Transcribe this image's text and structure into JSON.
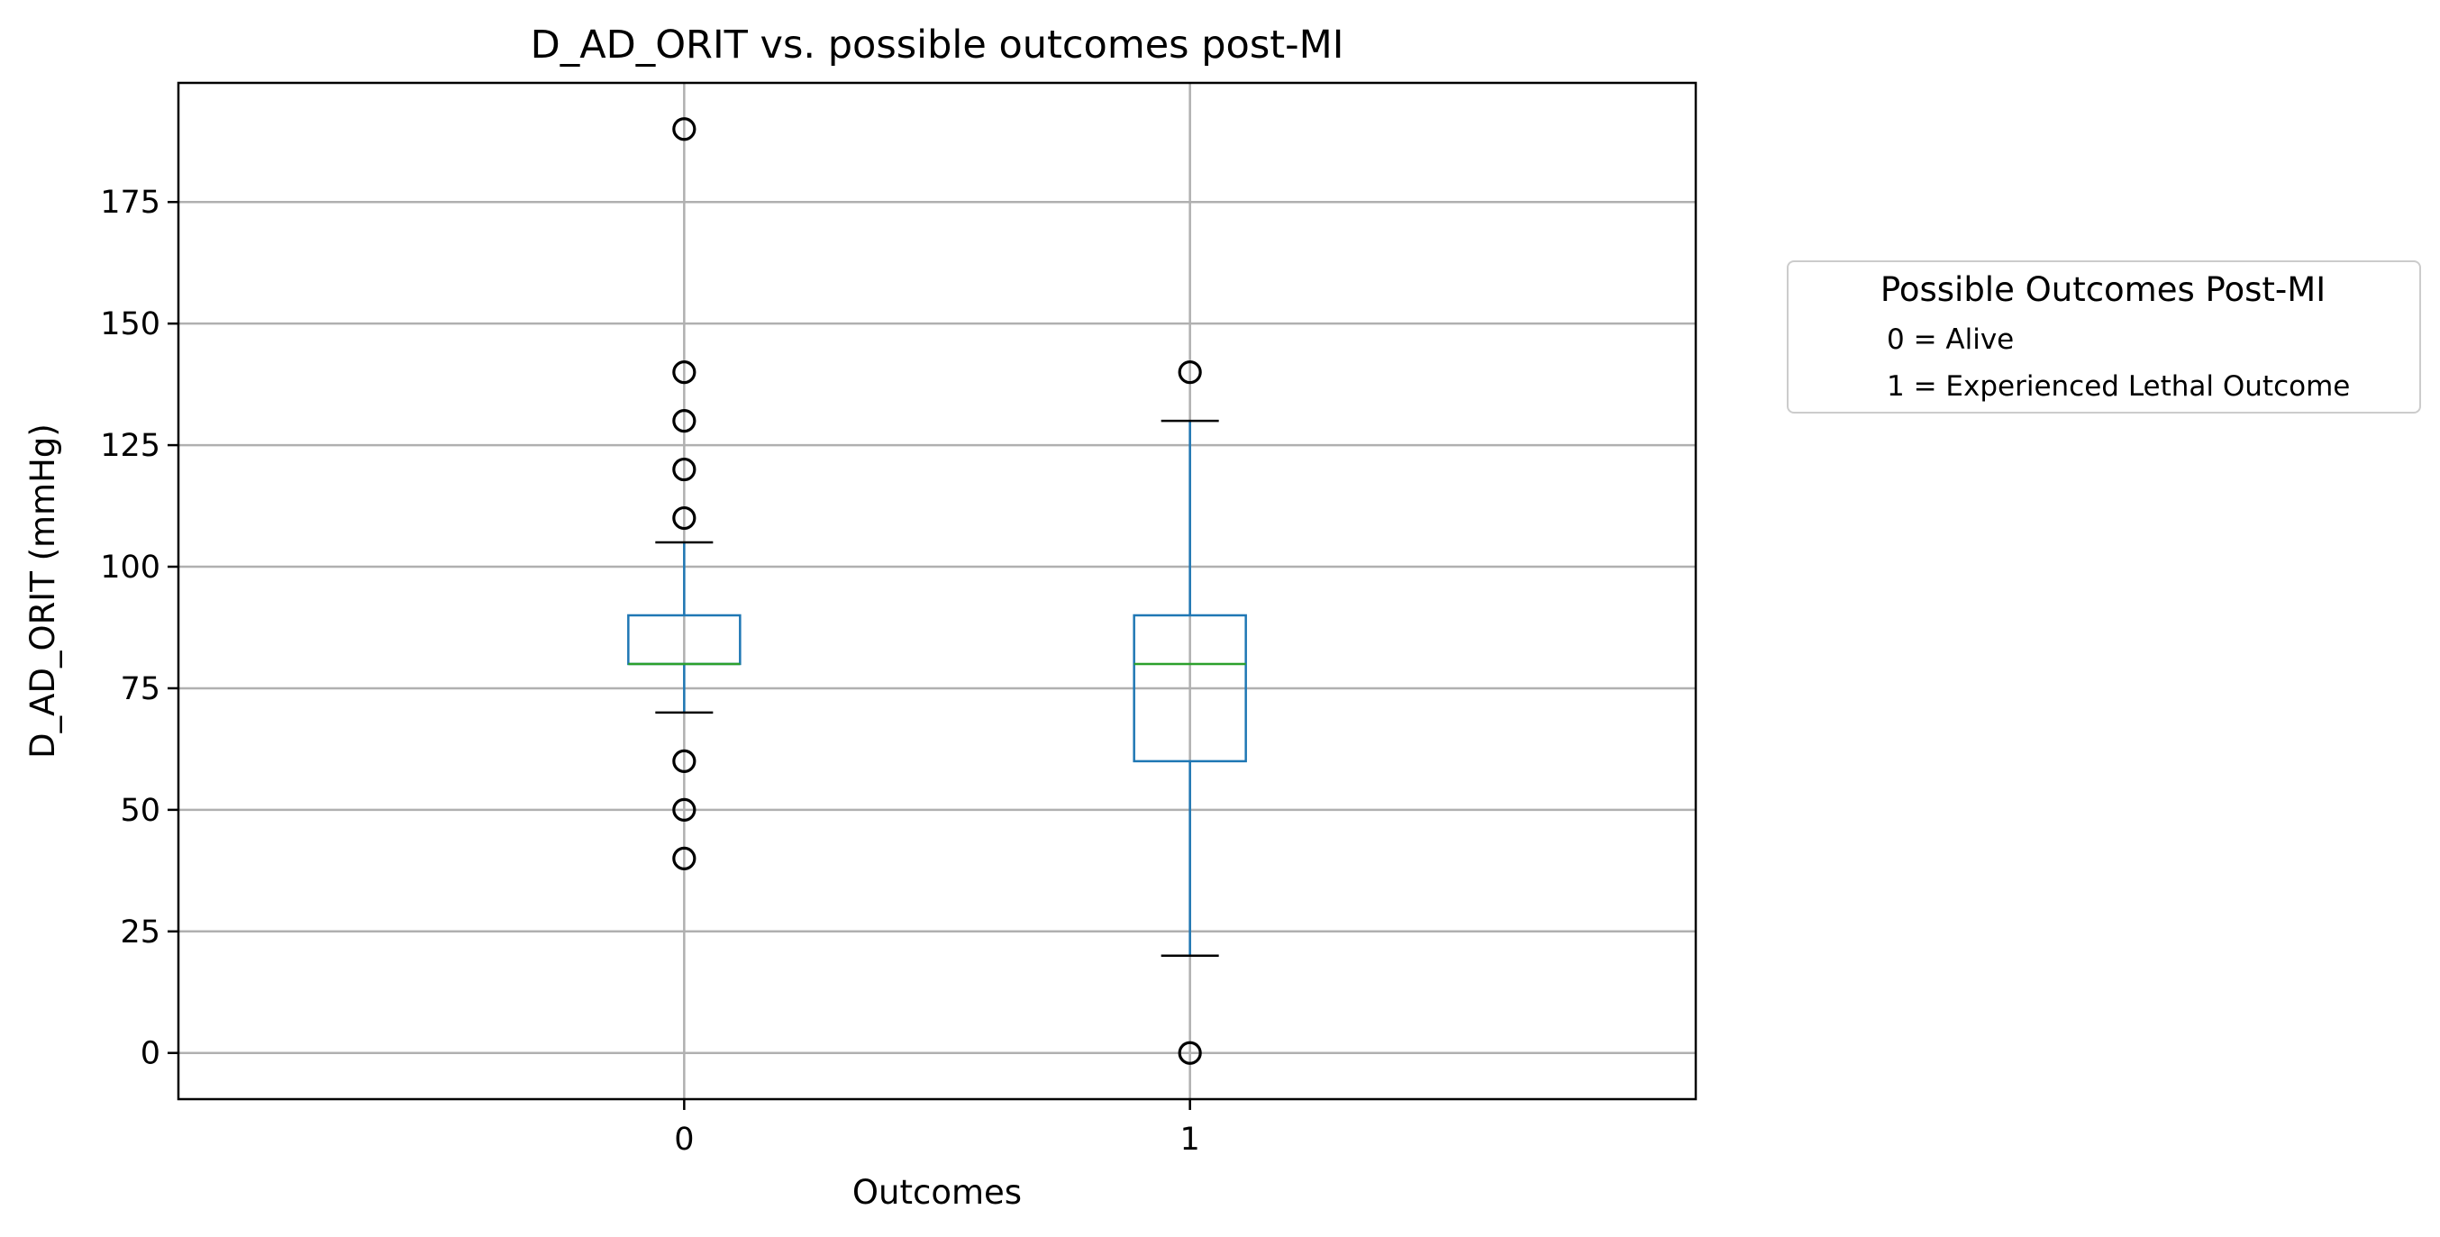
{
  "chart_data": {
    "type": "box",
    "title": "D_AD_ORIT vs. possible outcomes post-MI",
    "xlabel": "Outcomes",
    "ylabel": "D_AD_ORIT (mmHg)",
    "categories": [
      "0",
      "1"
    ],
    "ylim": [
      -9.5,
      199.5
    ],
    "yticks": [
      0,
      25,
      50,
      75,
      100,
      125,
      150,
      175
    ],
    "grid": true,
    "boxes": [
      {
        "category": "0",
        "whisker_low": 70,
        "q1": 80,
        "median": 80,
        "q3": 90,
        "whisker_high": 105,
        "outliers": [
          190,
          140,
          130,
          120,
          110,
          60,
          50,
          40
        ]
      },
      {
        "category": "1",
        "whisker_low": 20,
        "q1": 60,
        "median": 80,
        "q3": 90,
        "whisker_high": 130,
        "outliers": [
          140,
          0
        ]
      }
    ],
    "legend": {
      "title": "Possible Outcomes Post-MI",
      "entries": [
        "0 = Alive",
        "1 = Experienced Lethal Outcome"
      ],
      "placement": "outside right, upper"
    },
    "colors": {
      "box": "#1f77b4",
      "median": "#2ca02c",
      "grid": "#b0b0b0",
      "cap": "#000000"
    }
  }
}
